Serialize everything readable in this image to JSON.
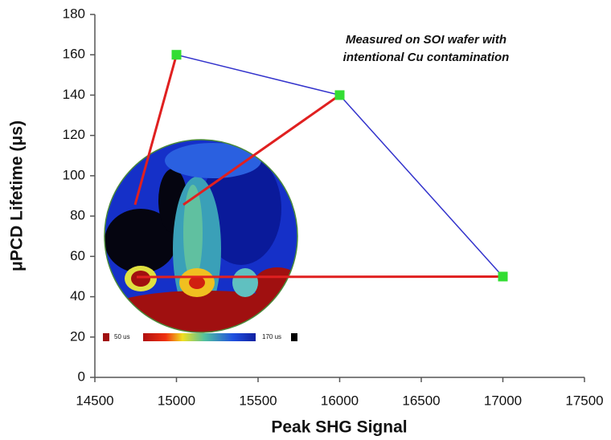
{
  "chart_data": {
    "type": "line",
    "xlabel": "Peak SHG Signal",
    "ylabel": "μPCD Lifetime (μs)",
    "annotation": [
      "Measured on SOI wafer with",
      "intentional Cu contamination"
    ],
    "colorbar_labels": [
      "50 us",
      "170 us"
    ],
    "x": [
      15000,
      16000,
      17000
    ],
    "series": [
      {
        "color": "#3333cc",
        "marker_color": "#33dd33",
        "values": [
          160,
          140,
          50
        ]
      }
    ],
    "xlim": [
      14500,
      17500
    ],
    "xticks": [
      14500,
      15000,
      15500,
      16000,
      16500,
      17000,
      17500
    ],
    "ylim": [
      0,
      180
    ],
    "yticks": [
      0,
      20,
      40,
      60,
      80,
      100,
      120,
      140,
      160,
      180
    ]
  }
}
